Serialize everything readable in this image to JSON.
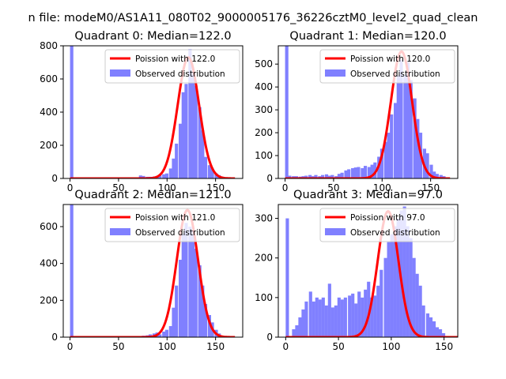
{
  "figure_title": "n file: modeM0/AS1A11_080T02_9000005176_36226cztM0_level2_quad_clean",
  "colors": {
    "poisson": "#ff0000",
    "observed": "#8080ff",
    "axis": "#000000"
  },
  "chart_data": [
    {
      "type": "bar",
      "title": "Quadrant 0: Median=122.0",
      "xlim": [
        -7,
        178
      ],
      "ylim": [
        0,
        800
      ],
      "xticks": [
        0,
        50,
        100,
        150
      ],
      "yticks": [
        0,
        200,
        400,
        600,
        800
      ],
      "legend": {
        "placement": "top-right",
        "entries": [
          "Poission with 122.0",
          "Observed distribution"
        ]
      },
      "poisson_mean": 122.0,
      "poisson_peak": 730,
      "observed": {
        "bin_width": 3.4,
        "bins": [
          [
            0,
            800
          ],
          [
            71,
            18
          ],
          [
            74,
            15
          ],
          [
            78,
            10
          ],
          [
            81,
            10
          ],
          [
            85,
            12
          ],
          [
            88,
            15
          ],
          [
            91,
            18
          ],
          [
            95,
            25
          ],
          [
            98,
            30
          ],
          [
            102,
            60
          ],
          [
            105,
            120
          ],
          [
            108,
            210
          ],
          [
            112,
            330
          ],
          [
            115,
            520
          ],
          [
            118,
            570
          ],
          [
            122,
            780
          ],
          [
            125,
            640
          ],
          [
            128,
            560
          ],
          [
            132,
            430
          ],
          [
            135,
            290
          ],
          [
            138,
            130
          ],
          [
            142,
            80
          ],
          [
            145,
            60
          ],
          [
            149,
            30
          ],
          [
            152,
            20
          ],
          [
            155,
            10
          ],
          [
            159,
            5
          ]
        ]
      }
    },
    {
      "type": "bar",
      "title": "Quadrant 1: Median=120.0",
      "xlim": [
        -7,
        178
      ],
      "ylim": [
        0,
        580
      ],
      "xticks": [
        0,
        50,
        100,
        150
      ],
      "yticks": [
        0,
        100,
        200,
        300,
        400,
        500
      ],
      "legend": {
        "placement": "top-right",
        "entries": [
          "Poission with 120.0",
          "Observed distribution"
        ]
      },
      "poisson_mean": 120.0,
      "poisson_peak": 555,
      "observed": {
        "bin_width": 3.4,
        "bins": [
          [
            0,
            580
          ],
          [
            3,
            12
          ],
          [
            7,
            10
          ],
          [
            10,
            10
          ],
          [
            14,
            8
          ],
          [
            17,
            10
          ],
          [
            20,
            12
          ],
          [
            24,
            15
          ],
          [
            27,
            10
          ],
          [
            30,
            15
          ],
          [
            34,
            10
          ],
          [
            37,
            15
          ],
          [
            41,
            18
          ],
          [
            44,
            12
          ],
          [
            47,
            15
          ],
          [
            51,
            10
          ],
          [
            54,
            20
          ],
          [
            57,
            25
          ],
          [
            61,
            35
          ],
          [
            64,
            40
          ],
          [
            68,
            45
          ],
          [
            71,
            48
          ],
          [
            74,
            50
          ],
          [
            78,
            45
          ],
          [
            81,
            55
          ],
          [
            85,
            50
          ],
          [
            88,
            60
          ],
          [
            91,
            70
          ],
          [
            95,
            95
          ],
          [
            98,
            130
          ],
          [
            102,
            160
          ],
          [
            105,
            200
          ],
          [
            108,
            280
          ],
          [
            112,
            330
          ],
          [
            115,
            450
          ],
          [
            118,
            520
          ],
          [
            122,
            450
          ],
          [
            125,
            510
          ],
          [
            128,
            430
          ],
          [
            132,
            350
          ],
          [
            135,
            260
          ],
          [
            138,
            200
          ],
          [
            142,
            130
          ],
          [
            145,
            110
          ],
          [
            149,
            60
          ],
          [
            152,
            30
          ],
          [
            155,
            20
          ],
          [
            159,
            15
          ],
          [
            162,
            10
          ]
        ]
      }
    },
    {
      "type": "bar",
      "title": "Quadrant 2: Median=121.0",
      "xlim": [
        -7,
        178
      ],
      "ylim": [
        0,
        720
      ],
      "xticks": [
        0,
        50,
        100,
        150
      ],
      "yticks": [
        0,
        200,
        400,
        600
      ],
      "legend": {
        "placement": "top-right",
        "entries": [
          "Poission with 121.0",
          "Observed distribution"
        ]
      },
      "poisson_mean": 121.0,
      "poisson_peak": 690,
      "observed": {
        "bin_width": 3.4,
        "bins": [
          [
            0,
            720
          ],
          [
            71,
            5
          ],
          [
            74,
            8
          ],
          [
            78,
            10
          ],
          [
            81,
            15
          ],
          [
            85,
            20
          ],
          [
            88,
            25
          ],
          [
            91,
            15
          ],
          [
            95,
            30
          ],
          [
            98,
            40
          ],
          [
            102,
            60
          ],
          [
            105,
            160
          ],
          [
            108,
            280
          ],
          [
            112,
            420
          ],
          [
            115,
            560
          ],
          [
            118,
            620
          ],
          [
            122,
            600
          ],
          [
            125,
            580
          ],
          [
            128,
            480
          ],
          [
            132,
            390
          ],
          [
            135,
            280
          ],
          [
            138,
            180
          ],
          [
            142,
            120
          ],
          [
            145,
            80
          ],
          [
            149,
            40
          ],
          [
            152,
            20
          ],
          [
            155,
            8
          ],
          [
            159,
            5
          ]
        ]
      }
    },
    {
      "type": "bar",
      "title": "Quadrant 3: Median=97.0",
      "xlim": [
        -7,
        163
      ],
      "ylim": [
        0,
        335
      ],
      "xticks": [
        0,
        50,
        100,
        150
      ],
      "yticks": [
        0,
        100,
        200,
        300
      ],
      "legend": {
        "placement": "top-right",
        "entries": [
          "Poission with 97.0",
          "Observed distribution"
        ]
      },
      "poisson_mean": 97.0,
      "poisson_peak": 318,
      "observed": {
        "bin_width": 3.1,
        "bins": [
          [
            0,
            300
          ],
          [
            6,
            20
          ],
          [
            9,
            30
          ],
          [
            12,
            50
          ],
          [
            15,
            70
          ],
          [
            18,
            90
          ],
          [
            22,
            115
          ],
          [
            25,
            90
          ],
          [
            28,
            100
          ],
          [
            31,
            95
          ],
          [
            34,
            100
          ],
          [
            37,
            80
          ],
          [
            40,
            135
          ],
          [
            43,
            75
          ],
          [
            46,
            80
          ],
          [
            49,
            100
          ],
          [
            52,
            95
          ],
          [
            55,
            100
          ],
          [
            59,
            105
          ],
          [
            62,
            110
          ],
          [
            65,
            85
          ],
          [
            68,
            115
          ],
          [
            71,
            100
          ],
          [
            74,
            120
          ],
          [
            77,
            140
          ],
          [
            80,
            100
          ],
          [
            83,
            105
          ],
          [
            86,
            130
          ],
          [
            89,
            170
          ],
          [
            93,
            200
          ],
          [
            96,
            240
          ],
          [
            99,
            260
          ],
          [
            102,
            280
          ],
          [
            105,
            300
          ],
          [
            108,
            320
          ],
          [
            111,
            330
          ],
          [
            114,
            280
          ],
          [
            117,
            250
          ],
          [
            120,
            200
          ],
          [
            123,
            160
          ],
          [
            126,
            130
          ],
          [
            129,
            80
          ],
          [
            133,
            60
          ],
          [
            136,
            50
          ],
          [
            139,
            40
          ],
          [
            142,
            25
          ],
          [
            145,
            20
          ],
          [
            148,
            10
          ]
        ]
      }
    }
  ]
}
